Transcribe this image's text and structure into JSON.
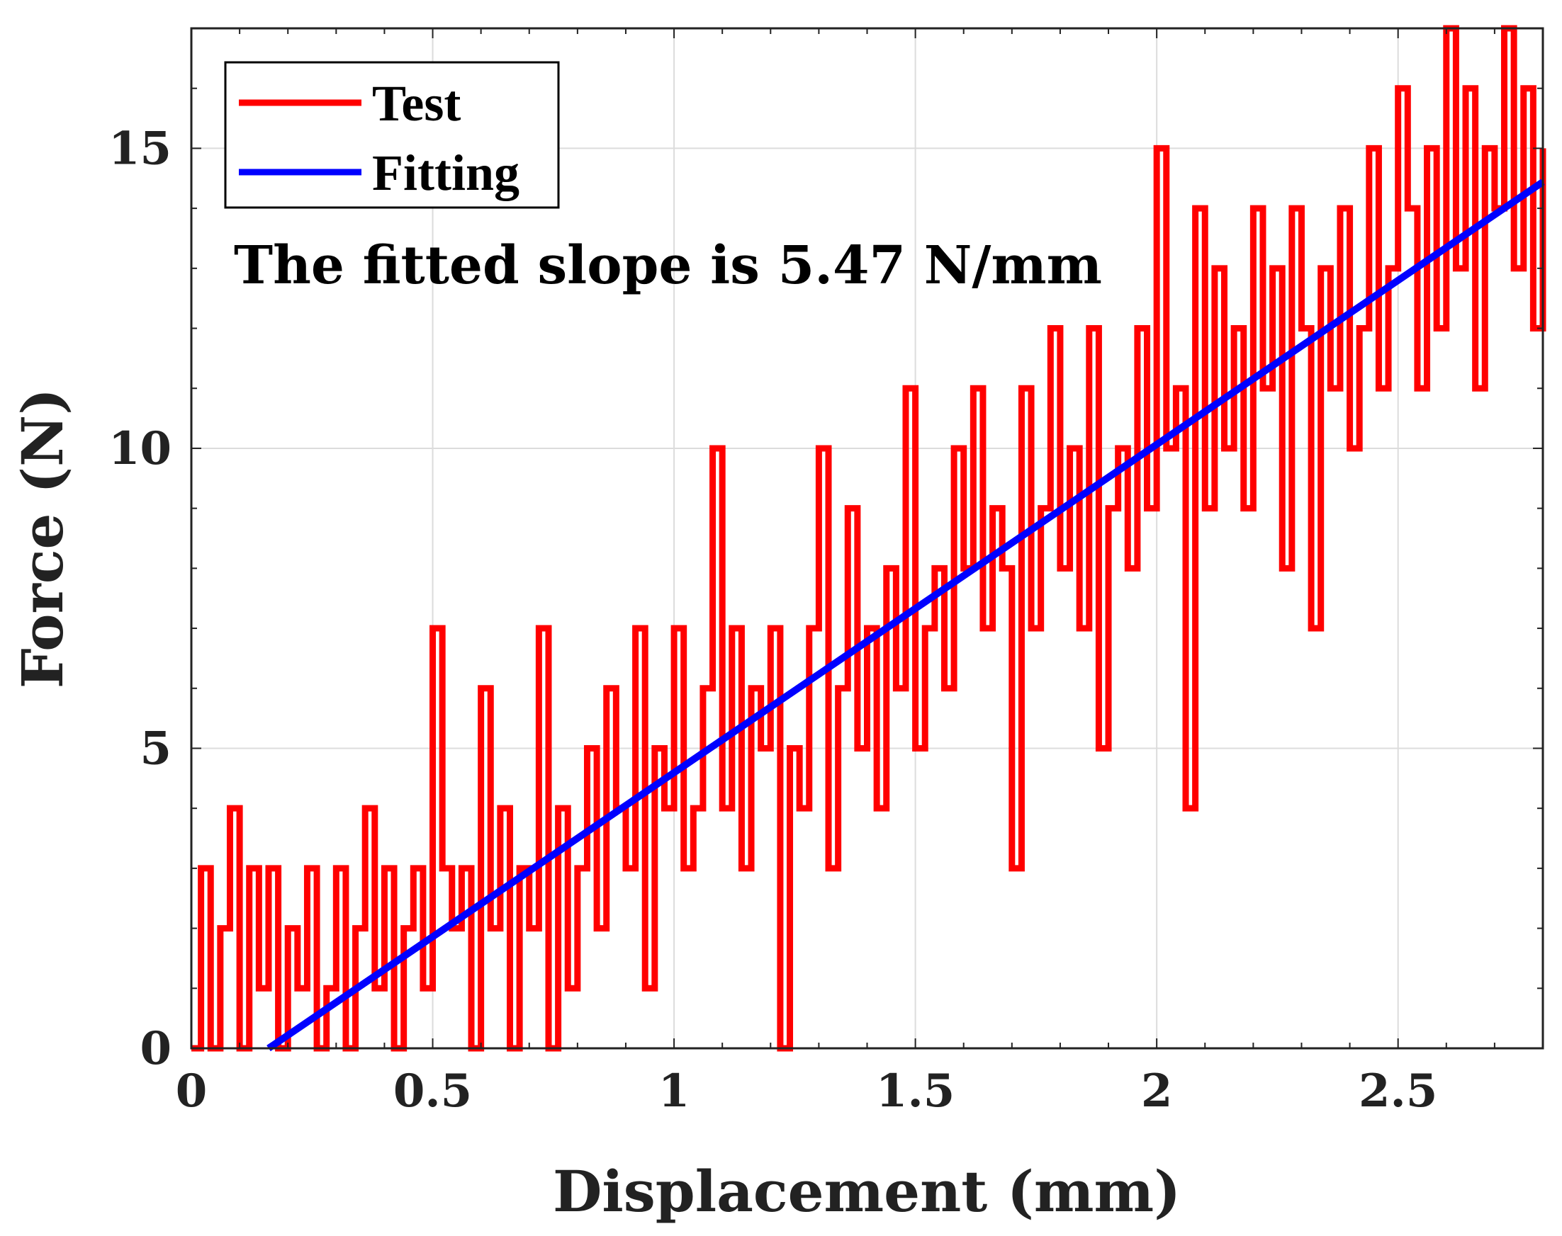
{
  "chart_data": {
    "type": "line",
    "title": "",
    "xlabel": "Displacement (mm)",
    "ylabel": "Force (N)",
    "xlim": [
      0,
      2.8
    ],
    "ylim": [
      0,
      17
    ],
    "xticks": [
      0,
      0.5,
      1,
      1.5,
      2,
      2.5
    ],
    "xtick_labels": [
      "0",
      "0.5",
      "1",
      "1.5",
      "2",
      "2.5"
    ],
    "yticks": [
      0,
      5,
      10,
      15
    ],
    "ytick_labels": [
      "0",
      "5",
      "10",
      "15"
    ],
    "grid": true,
    "legend_position": "top-left",
    "annotation": "The fitted slope is 5.47 N/mm",
    "series": [
      {
        "name": "Test",
        "color": "#ff0000",
        "description": "noisy measured force, integer-quantized",
        "x": [
          0.0,
          0.02,
          0.04,
          0.06,
          0.08,
          0.1,
          0.12,
          0.14,
          0.16,
          0.18,
          0.2,
          0.22,
          0.24,
          0.26,
          0.28,
          0.3,
          0.32,
          0.34,
          0.36,
          0.38,
          0.4,
          0.42,
          0.44,
          0.46,
          0.48,
          0.5,
          0.52,
          0.54,
          0.56,
          0.58,
          0.6,
          0.62,
          0.64,
          0.66,
          0.68,
          0.7,
          0.72,
          0.74,
          0.76,
          0.78,
          0.8,
          0.82,
          0.84,
          0.86,
          0.88,
          0.9,
          0.92,
          0.94,
          0.96,
          0.98,
          1.0,
          1.02,
          1.04,
          1.06,
          1.08,
          1.1,
          1.12,
          1.14,
          1.16,
          1.18,
          1.2,
          1.22,
          1.24,
          1.26,
          1.28,
          1.3,
          1.32,
          1.34,
          1.36,
          1.38,
          1.4,
          1.42,
          1.44,
          1.46,
          1.48,
          1.5,
          1.52,
          1.54,
          1.56,
          1.58,
          1.6,
          1.62,
          1.64,
          1.66,
          1.68,
          1.7,
          1.72,
          1.74,
          1.76,
          1.78,
          1.8,
          1.82,
          1.84,
          1.86,
          1.88,
          1.9,
          1.92,
          1.94,
          1.96,
          1.98,
          2.0,
          2.02,
          2.04,
          2.06,
          2.08,
          2.1,
          2.12,
          2.14,
          2.16,
          2.18,
          2.2,
          2.22,
          2.24,
          2.26,
          2.28,
          2.3,
          2.32,
          2.34,
          2.36,
          2.38,
          2.4,
          2.42,
          2.44,
          2.46,
          2.48,
          2.5,
          2.52,
          2.54,
          2.56,
          2.58,
          2.6,
          2.62,
          2.64,
          2.66,
          2.68,
          2.7,
          2.72,
          2.74,
          2.76,
          2.78,
          2.8
        ],
        "values": [
          0,
          3,
          0,
          2,
          4,
          0,
          3,
          1,
          3,
          0,
          2,
          1,
          3,
          0,
          1,
          3,
          0,
          2,
          4,
          1,
          3,
          0,
          2,
          3,
          1,
          7,
          3,
          2,
          3,
          0,
          6,
          2,
          4,
          0,
          3,
          2,
          7,
          0,
          4,
          1,
          3,
          5,
          2,
          6,
          4,
          3,
          7,
          1,
          5,
          4,
          7,
          3,
          4,
          6,
          10,
          4,
          7,
          3,
          6,
          5,
          7,
          0,
          5,
          4,
          7,
          10,
          3,
          6,
          9,
          5,
          7,
          4,
          8,
          6,
          11,
          5,
          7,
          8,
          6,
          10,
          8,
          11,
          7,
          9,
          8,
          3,
          11,
          7,
          9,
          12,
          8,
          10,
          7,
          12,
          5,
          9,
          10,
          8,
          12,
          9,
          15,
          10,
          11,
          4,
          14,
          9,
          13,
          10,
          12,
          9,
          14,
          11,
          13,
          8,
          14,
          12,
          7,
          13,
          11,
          14,
          10,
          12,
          15,
          11,
          13,
          16,
          14,
          11,
          15,
          12,
          17,
          13,
          16,
          11,
          15,
          14,
          17,
          13,
          16,
          12,
          15
        ]
      },
      {
        "name": "Fitting",
        "color": "#0000ff",
        "x": [
          0.16,
          2.8
        ],
        "values": [
          0.0,
          14.44
        ]
      }
    ]
  }
}
